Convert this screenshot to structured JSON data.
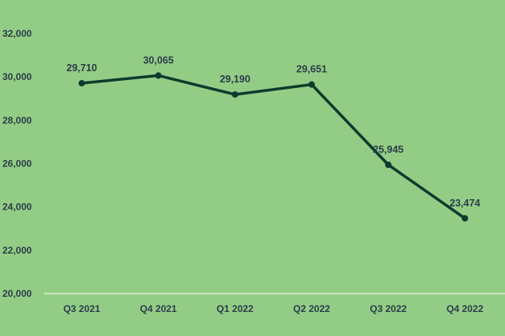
{
  "colors": {
    "background": "#93cd85",
    "line": "#0e3a2e",
    "text": "#2b3d4a",
    "axis": "#ffffff"
  },
  "chart_data": {
    "type": "line",
    "categories": [
      "Q3 2021",
      "Q4 2021",
      "Q1 2022",
      "Q2 2022",
      "Q3 2022",
      "Q4 2022"
    ],
    "series": [
      {
        "values": [
          29710,
          30065,
          29190,
          29651,
          25945,
          23474
        ],
        "data_labels": [
          "29,710",
          "30,065",
          "29,190",
          "29,651",
          "25,945",
          "23,474"
        ]
      }
    ],
    "yticks": [
      "20,000",
      "22,000",
      "24,000",
      "26,000",
      "28,000",
      "30,000",
      "32,000"
    ],
    "ytick_values": [
      20000,
      22000,
      24000,
      26000,
      28000,
      30000,
      32000
    ],
    "ylim": [
      20000,
      32000
    ],
    "grid": false,
    "legend": "none",
    "markers": true
  }
}
